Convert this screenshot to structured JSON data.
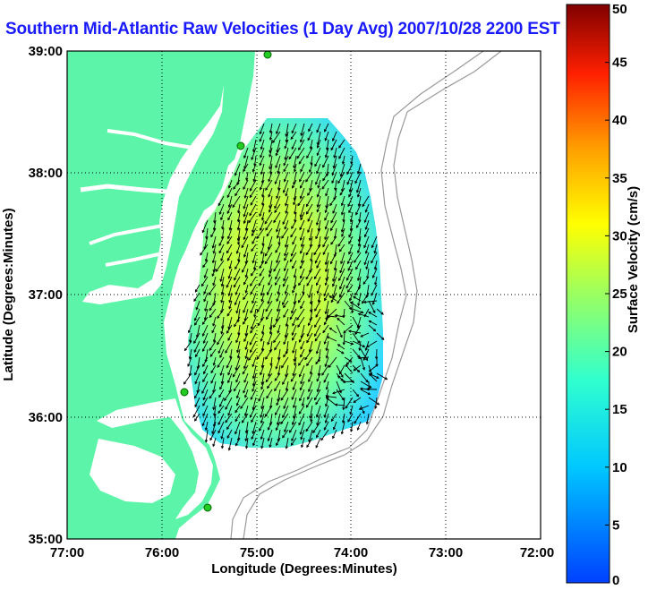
{
  "title": "Southern Mid-Atlantic Raw Velocities (1 Day Avg) 2007/10/28 2200 EST",
  "xaxis": {
    "label": "Longitude (Degrees:Minutes)",
    "ticks": [
      "77:00",
      "76:00",
      "75:00",
      "74:00",
      "73:00",
      "72:00"
    ]
  },
  "yaxis": {
    "label": "Latitude (Degrees:Minutes)",
    "ticks": [
      "39:00",
      "38:00",
      "37:00",
      "36:00",
      "35:00"
    ]
  },
  "colorbar": {
    "label": "Surface Velocity (cm/s)",
    "ticks": [
      "50",
      "45",
      "40",
      "35",
      "30",
      "25",
      "20",
      "15",
      "10",
      "5",
      "0"
    ],
    "min": 0,
    "max": 50
  },
  "colors": {
    "land": "#5cf4a8",
    "title": "#1a1aff",
    "bathymetry": "#999999",
    "station": "#22cc22"
  }
}
